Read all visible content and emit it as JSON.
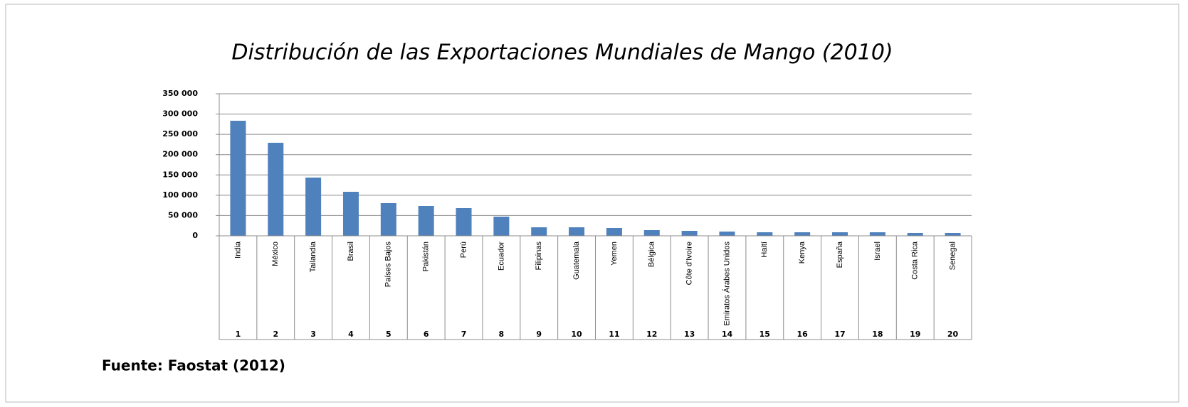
{
  "chart_data": {
    "type": "bar",
    "title": "Distribución de las Exportaciones Mundiales de Mango (2010)",
    "source": "Fuente: Faostat (2012)",
    "categories": [
      "India",
      "México",
      "Tailandia",
      "Brasil",
      "Países Bajos",
      "Pakistán",
      "Perú",
      "Ecuador",
      "Filipinas",
      "Guatemala",
      "Yemen",
      "Bélgica",
      "Côte d'Ivoire",
      "Emiratos Árabes Unidos",
      "Haití",
      "Kenya",
      "España",
      "Israel",
      "Costa Rica",
      "Senegal"
    ],
    "category_numbers": [
      1,
      2,
      3,
      4,
      5,
      6,
      7,
      8,
      9,
      10,
      11,
      12,
      13,
      14,
      15,
      16,
      17,
      18,
      19,
      20
    ],
    "values": [
      283500,
      229250,
      143500,
      108500,
      80500,
      73500,
      68250,
      47250,
      21000,
      21000,
      19250,
      14000,
      12250,
      10500,
      8750,
      8750,
      8750,
      8750,
      7000,
      7000
    ],
    "color": "#4f81bd",
    "ylim": [
      0,
      350000
    ],
    "yticks": [
      0,
      {
        "value": 50000,
        "label": "50 000"
      },
      {
        "value": 100000,
        "label": "100 000"
      },
      {
        "value": 150000,
        "label": "150 000"
      },
      {
        "value": 200000,
        "label": "200 000"
      },
      {
        "value": 250000,
        "label": "250 000"
      },
      {
        "value": 300000,
        "label": "300 000"
      },
      {
        "value": 350000,
        "label": "350 000"
      }
    ],
    "grid": true
  }
}
